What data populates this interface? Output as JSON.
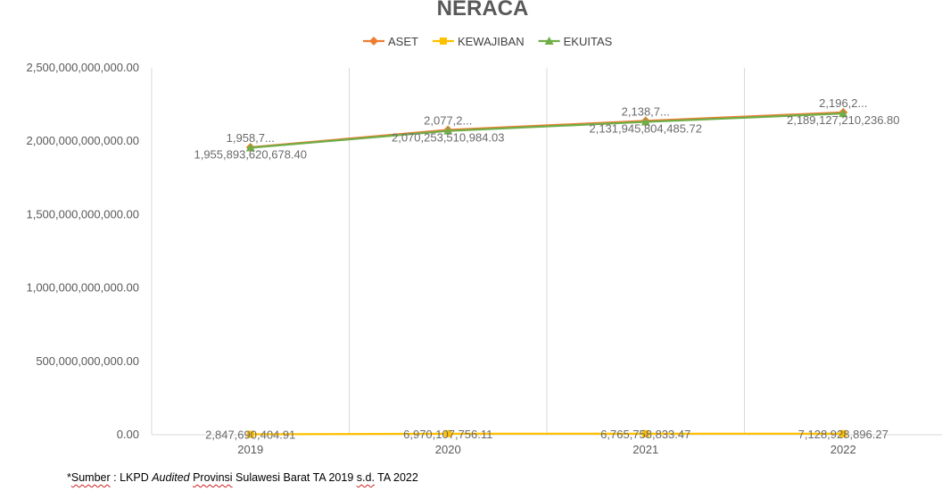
{
  "chart_data": {
    "type": "line",
    "title": "NERACA",
    "xlabel": "",
    "ylabel": "",
    "categories": [
      "2019",
      "2020",
      "2021",
      "2022"
    ],
    "ylim": [
      0,
      2500000000000
    ],
    "yticks": [
      0,
      500000000000,
      1000000000000,
      1500000000000,
      2000000000000,
      2500000000000
    ],
    "ytick_labels": [
      "0.00",
      "500,000,000,000.00",
      "1,000,000,000,000.00",
      "1,500,000,000,000.00",
      "2,000,000,000,000.00",
      "2,500,000,000,000.00"
    ],
    "grid": "vertical",
    "legend_position": "top",
    "series": [
      {
        "name": "ASET",
        "color": "#ED7D31",
        "marker": "diamond",
        "values": [
          1958741000000,
          2077223000000,
          2138711000000,
          2196256000000
        ],
        "labels": [
          "1,958,7...",
          "2,077,2...",
          "2,138,7...",
          "2,196,2..."
        ]
      },
      {
        "name": "KEWAJIBAN",
        "color": "#FFC000",
        "marker": "square",
        "values": [
          2847690404.91,
          6970107756.11,
          6765758833.47,
          7128928896.27
        ],
        "labels": [
          "2,847,690,404.91",
          "6,970,107,756.11",
          "6,765,758,833.47",
          "7,128,928,896.27"
        ]
      },
      {
        "name": "EKUITAS",
        "color": "#70AD47",
        "marker": "triangle",
        "values": [
          1955893000000,
          2070253000000,
          2131945000000,
          2189127000000
        ],
        "labels": [
          "1,955,893,620,678.40",
          "2,070,253,510,984.03",
          "2,131,945,804,485.72",
          "2,189,127,210,236.80"
        ]
      }
    ]
  },
  "footnote": {
    "prefix": "*",
    "w1": "Sumber",
    "t1": " : LKPD ",
    "w2": "Audited",
    "t2": " ",
    "w3": "Provinsi",
    "t3": " Sulawesi Barat TA 2019 ",
    "w4": "s.d.",
    "t4": " TA 2022"
  }
}
